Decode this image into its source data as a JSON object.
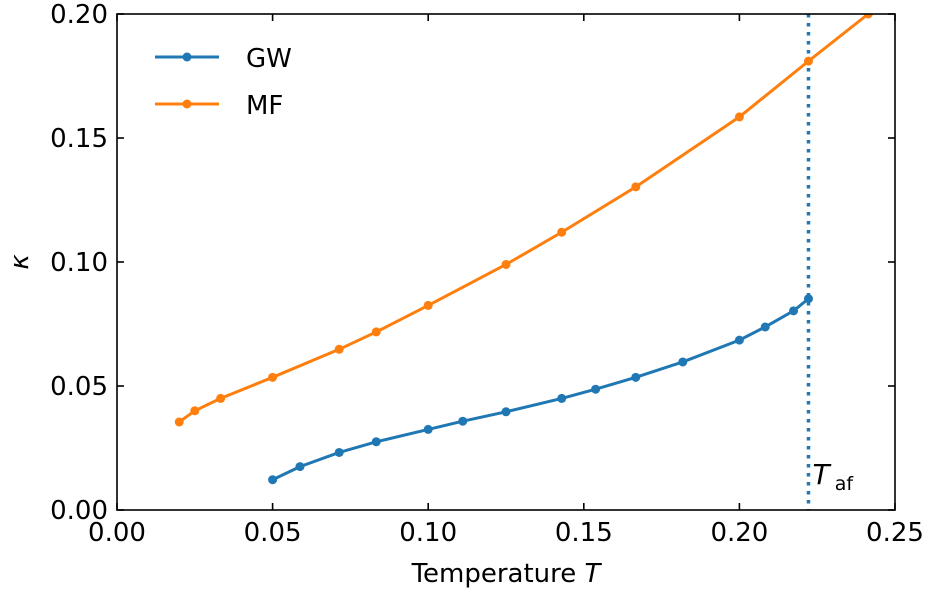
{
  "chart_data": {
    "type": "line",
    "xlabel": "Temperature",
    "xlabel_var": "T",
    "ylabel": "κ",
    "xlim": [
      0.0,
      0.25
    ],
    "ylim": [
      0.0,
      0.2
    ],
    "x_ticks": [
      "0.00",
      "0.05",
      "0.10",
      "0.15",
      "0.20",
      "0.25"
    ],
    "y_ticks": [
      "0.00",
      "0.05",
      "0.10",
      "0.15",
      "0.20"
    ],
    "grid": false,
    "legend_position": "top-left",
    "series": [
      {
        "name": "GW",
        "color": "#1f77b4",
        "x": [
          0.05,
          0.0588,
          0.0714,
          0.0833,
          0.1,
          0.1111,
          0.125,
          0.1429,
          0.1538,
          0.1667,
          0.1818,
          0.2,
          0.2083,
          0.2174,
          0.2222
        ],
        "y": [
          0.0122,
          0.0175,
          0.0232,
          0.0275,
          0.0325,
          0.0358,
          0.0396,
          0.045,
          0.0487,
          0.0535,
          0.0597,
          0.0685,
          0.0738,
          0.0803,
          0.0852
        ]
      },
      {
        "name": "MF",
        "color": "#ff7f0e",
        "x": [
          0.02,
          0.025,
          0.0333,
          0.05,
          0.0714,
          0.0833,
          0.1,
          0.125,
          0.1429,
          0.1667,
          0.2,
          0.2222,
          0.2414
        ],
        "y": [
          0.0355,
          0.04,
          0.045,
          0.0535,
          0.0648,
          0.0718,
          0.0825,
          0.099,
          0.112,
          0.1303,
          0.1585,
          0.181,
          0.2
        ]
      }
    ],
    "vline": {
      "x": 0.2222,
      "color": "#1f77b4",
      "style": "dotted",
      "label_main": "T",
      "label_sub": "af"
    }
  }
}
